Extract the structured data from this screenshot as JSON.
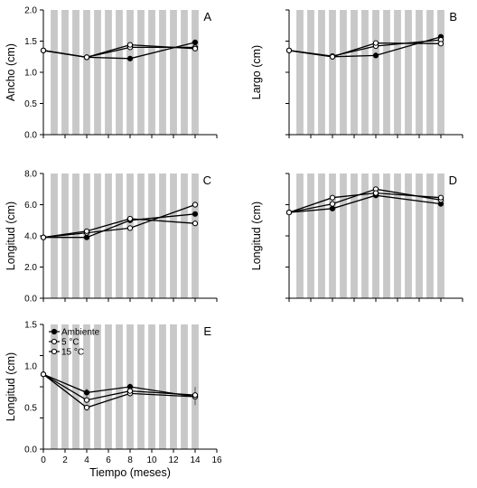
{
  "chart_data": [
    {
      "type": "line",
      "panel": "A",
      "ylabel": "Ancho (cm)",
      "xlabel": "",
      "ylim": [
        0,
        2.0
      ],
      "yticks": [
        "0.0",
        "0.5",
        "1.0",
        "1.5",
        "2.0"
      ],
      "xlim": [
        0,
        16
      ],
      "xticks": [],
      "x": [
        0,
        4,
        8,
        14
      ],
      "series": [
        {
          "name": "Ambiente",
          "values": [
            1.35,
            1.24,
            1.22,
            1.48
          ],
          "errors": [
            0.02,
            0.02,
            0.02,
            0.02
          ],
          "marker": "filled"
        },
        {
          "name": "5 °C",
          "values": [
            1.35,
            1.24,
            1.4,
            1.4
          ],
          "errors": [
            0.02,
            0.02,
            0.02,
            0.02
          ],
          "marker": "open"
        },
        {
          "name": "15 °C",
          "values": [
            1.35,
            1.24,
            1.44,
            1.38
          ],
          "errors": [
            0.02,
            0.02,
            0.02,
            0.02
          ],
          "marker": "open"
        }
      ]
    },
    {
      "type": "line",
      "panel": "B",
      "ylabel": "Largo (cm)",
      "xlabel": "",
      "ylim": [
        0,
        2.0
      ],
      "yticks": [],
      "xlim": [
        0,
        16
      ],
      "xticks": [],
      "x": [
        0,
        4,
        8,
        14
      ],
      "series": [
        {
          "name": "Ambiente",
          "values": [
            1.35,
            1.25,
            1.27,
            1.57
          ],
          "errors": [
            0.02,
            0.02,
            0.02,
            0.03
          ],
          "marker": "filled"
        },
        {
          "name": "5 °C",
          "values": [
            1.35,
            1.26,
            1.42,
            1.52
          ],
          "errors": [
            0.02,
            0.02,
            0.02,
            0.02
          ],
          "marker": "open"
        },
        {
          "name": "15 °C",
          "values": [
            1.35,
            1.25,
            1.47,
            1.46
          ],
          "errors": [
            0.02,
            0.02,
            0.02,
            0.02
          ],
          "marker": "open"
        }
      ]
    },
    {
      "type": "line",
      "panel": "C",
      "ylabel": "Longitud (cm)",
      "xlabel": "",
      "ylim": [
        0,
        8.0
      ],
      "yticks": [
        "0.0",
        "2.0",
        "4.0",
        "6.0",
        "8.0"
      ],
      "xlim": [
        0,
        16
      ],
      "xticks": [],
      "x": [
        0,
        4,
        8,
        14
      ],
      "series": [
        {
          "name": "Ambiente",
          "values": [
            3.9,
            3.9,
            5.0,
            5.4
          ],
          "errors": [
            0.1,
            0.1,
            0.1,
            0.15
          ],
          "marker": "filled"
        },
        {
          "name": "5 °C",
          "values": [
            3.9,
            4.2,
            4.5,
            6.0
          ],
          "errors": [
            0.1,
            0.1,
            0.1,
            0.2
          ],
          "marker": "open"
        },
        {
          "name": "15 °C",
          "values": [
            3.9,
            4.3,
            5.1,
            4.8
          ],
          "errors": [
            0.1,
            0.1,
            0.1,
            0.2
          ],
          "marker": "open"
        }
      ]
    },
    {
      "type": "line",
      "panel": "D",
      "ylabel": "Longitud (cm)",
      "xlabel": "",
      "ylim": [
        0,
        8.0
      ],
      "yticks": [],
      "xlim": [
        0,
        16
      ],
      "xticks": [],
      "x": [
        0,
        4,
        8,
        14
      ],
      "series": [
        {
          "name": "Ambiente",
          "values": [
            5.5,
            5.75,
            6.6,
            6.05
          ],
          "errors": [
            0.1,
            0.15,
            0.2,
            0.15
          ],
          "marker": "filled"
        },
        {
          "name": "5 °C",
          "values": [
            5.5,
            6.05,
            7.0,
            6.3
          ],
          "errors": [
            0.1,
            0.15,
            0.15,
            0.15
          ],
          "marker": "open"
        },
        {
          "name": "15 °C",
          "values": [
            5.5,
            6.45,
            6.75,
            6.45
          ],
          "errors": [
            0.1,
            0.15,
            0.15,
            0.15
          ],
          "marker": "open"
        }
      ]
    },
    {
      "type": "line",
      "panel": "E",
      "ylabel": "Longitud (cm)",
      "xlabel": "Tiempo (meses)",
      "ylim": [
        0,
        1.5
      ],
      "yticks": [
        "0.0",
        "0.5",
        "1.0",
        "1.5"
      ],
      "xlim": [
        0,
        16
      ],
      "xticks": [
        "0",
        "2",
        "4",
        "6",
        "8",
        "10",
        "12",
        "14",
        "16"
      ],
      "x": [
        0,
        4,
        8,
        14
      ],
      "legend": "top-left",
      "series": [
        {
          "name": "Ambiente",
          "values": [
            0.9,
            0.68,
            0.75,
            0.63
          ],
          "errors": [
            0.03,
            0.05,
            0.04,
            0.1
          ],
          "marker": "filled"
        },
        {
          "name": "5 °C",
          "values": [
            0.9,
            0.5,
            0.67,
            0.63
          ],
          "errors": [
            0.03,
            0.04,
            0.04,
            0.1
          ],
          "marker": "open"
        },
        {
          "name": "15 °C",
          "values": [
            0.9,
            0.59,
            0.7,
            0.65
          ],
          "errors": [
            0.03,
            0.04,
            0.04,
            0.1
          ],
          "marker": "open"
        }
      ]
    }
  ],
  "shading": {
    "color": "#c8c8c8",
    "count": 14,
    "band_width": 0.65
  }
}
